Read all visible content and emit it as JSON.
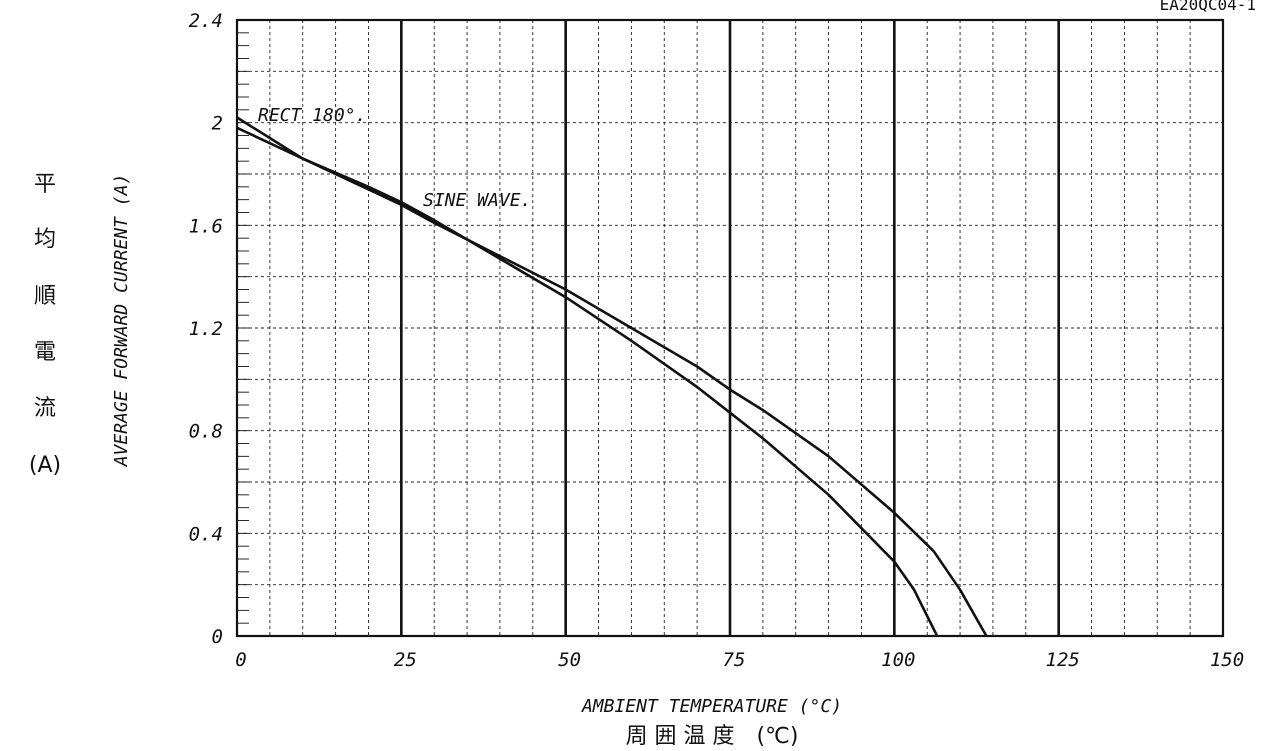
{
  "chart_data": {
    "type": "line",
    "document_code": "EA20QC04-1",
    "xlabel": "AMBIENT TEMPERATURE (°C)",
    "xlabel_jp": "周 囲 温 度　(℃)",
    "ylabel": "AVERAGE FORWARD CURRENT (A)",
    "ylabel_jp": [
      "平",
      "均",
      "順",
      "電",
      "流",
      "(A)"
    ],
    "xlim": [
      0,
      150
    ],
    "ylim": [
      0,
      2.4
    ],
    "x_ticks": [
      0,
      25,
      50,
      75,
      100,
      125,
      150
    ],
    "y_ticks": [
      "0",
      "0.4",
      "0.8",
      "1.2",
      "1.6",
      "2",
      "2.4"
    ],
    "grid": true,
    "series": [
      {
        "name": "RECT 180°.",
        "x": [
          0,
          10,
          20,
          25,
          30,
          40,
          50,
          60,
          70,
          75,
          80,
          90,
          100,
          106,
          110,
          114
        ],
        "y": [
          2.02,
          1.86,
          1.74,
          1.68,
          1.61,
          1.48,
          1.35,
          1.2,
          1.05,
          0.96,
          0.88,
          0.7,
          0.48,
          0.33,
          0.18,
          0.0
        ]
      },
      {
        "name": "SINE WAVE.",
        "x": [
          0,
          10,
          20,
          25,
          30,
          40,
          50,
          60,
          70,
          75,
          80,
          90,
          100,
          103,
          106.5
        ],
        "y": [
          1.98,
          1.86,
          1.75,
          1.69,
          1.62,
          1.47,
          1.32,
          1.15,
          0.97,
          0.87,
          0.77,
          0.55,
          0.29,
          0.18,
          0.0
        ]
      }
    ]
  }
}
